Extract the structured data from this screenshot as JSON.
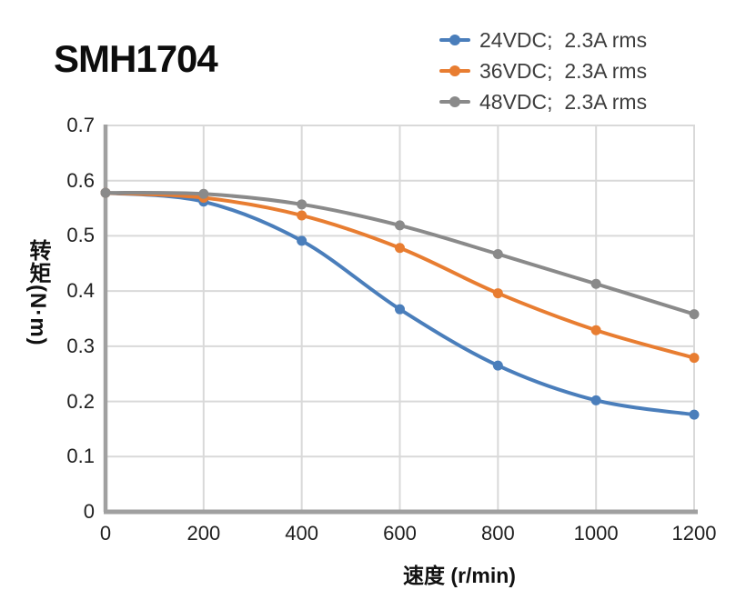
{
  "page": {
    "background": "#ffffff"
  },
  "chart_data": {
    "type": "line",
    "title": "SMH1704",
    "xlabel": "速度 (r/min)",
    "ylabel": "转矩(N·m)",
    "xlim": [
      0,
      1200
    ],
    "ylim": [
      0,
      0.7
    ],
    "grid": true,
    "legend_position": "top-right",
    "x": [
      0,
      200,
      400,
      600,
      800,
      1000,
      1200
    ],
    "x_tick_labels": [
      "0",
      "200",
      "400",
      "600",
      "800",
      "1000",
      "1200"
    ],
    "y_ticks": [
      0,
      0.1,
      0.2,
      0.3,
      0.4,
      0.5,
      0.6,
      0.7
    ],
    "y_tick_labels": [
      "0",
      "0.1",
      "0.2",
      "0.3",
      "0.4",
      "0.5",
      "0.6",
      "0.7"
    ],
    "series": [
      {
        "name": "24VDC;  2.3A rms",
        "color": "#4a7ebb",
        "marker": "circle",
        "values": [
          0.578,
          0.562,
          0.491,
          0.367,
          0.265,
          0.202,
          0.176
        ]
      },
      {
        "name": "36VDC;  2.3A rms",
        "color": "#e87d31",
        "marker": "circle",
        "values": [
          0.578,
          0.569,
          0.537,
          0.478,
          0.396,
          0.329,
          0.279
        ]
      },
      {
        "name": "48VDC;  2.3A rms",
        "color": "#8a8a8a",
        "marker": "circle",
        "values": [
          0.578,
          0.576,
          0.557,
          0.519,
          0.467,
          0.413,
          0.358
        ]
      }
    ],
    "style": {
      "gridline_color": "#d9d9d9",
      "axis_color": "#a0a0a0",
      "tick_text_color": "#1f1f1f",
      "legend_text_color": "#3d3d3d",
      "title_color": "#0d0d0d",
      "line_width": 4,
      "marker_radius": 5.5
    }
  }
}
